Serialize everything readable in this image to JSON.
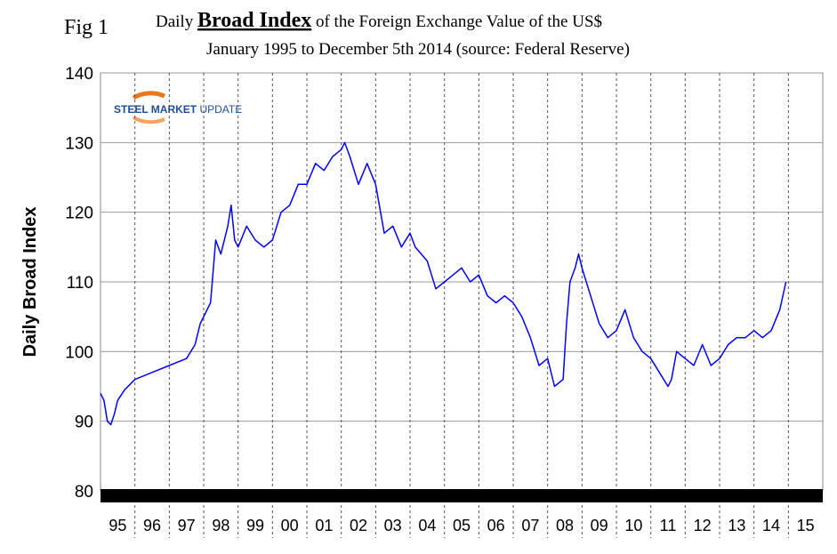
{
  "chart_data": {
    "type": "line",
    "fig_label": "Fig 1",
    "title": [
      "Daily",
      "Broad Index",
      "of the Foreign Exchange Value of the US$"
    ],
    "subtitle": "January 1995 to December 5th 2014 (source: Federal Reserve)",
    "logo": [
      "STEEL MARKET",
      "UPDATE"
    ],
    "y_label": "Daily Broad Index",
    "categories": [
      "95",
      "96",
      "97",
      "98",
      "99",
      "00",
      "01",
      "02",
      "03",
      "04",
      "05",
      "06",
      "07",
      "08",
      "09",
      "10",
      "11",
      "12",
      "13",
      "14",
      "15"
    ],
    "xlim": [
      1995,
      2016
    ],
    "ylim": [
      80,
      140
    ],
    "yticks": [
      80,
      90,
      100,
      110,
      120,
      130,
      140
    ],
    "grid": true,
    "series": [
      {
        "color": "#0000ff",
        "x": [
          1995.0,
          1995.1,
          1995.2,
          1995.3,
          1995.4,
          1995.5,
          1995.7,
          1996.0,
          1996.5,
          1997.0,
          1997.5,
          1997.75,
          1997.9,
          1998.2,
          1998.35,
          1998.5,
          1998.7,
          1998.8,
          1998.9,
          1999.0,
          1999.25,
          1999.5,
          1999.75,
          2000.0,
          2000.25,
          2000.5,
          2000.75,
          2001.0,
          2001.25,
          2001.5,
          2001.75,
          2002.0,
          2002.1,
          2002.25,
          2002.5,
          2002.75,
          2003.0,
          2003.25,
          2003.5,
          2003.75,
          2004.0,
          2004.15,
          2004.5,
          2004.75,
          2005.0,
          2005.25,
          2005.5,
          2005.75,
          2006.0,
          2006.25,
          2006.5,
          2006.75,
          2007.0,
          2007.25,
          2007.5,
          2007.75,
          2008.0,
          2008.2,
          2008.45,
          2008.55,
          2008.65,
          2008.8,
          2008.9,
          2009.0,
          2009.25,
          2009.5,
          2009.75,
          2010.0,
          2010.25,
          2010.5,
          2010.75,
          2011.0,
          2011.25,
          2011.5,
          2011.6,
          2011.75,
          2012.0,
          2012.25,
          2012.5,
          2012.75,
          2013.0,
          2013.25,
          2013.5,
          2013.75,
          2014.0,
          2014.25,
          2014.5,
          2014.75,
          2014.93
        ],
        "values": [
          94,
          93,
          90,
          89.5,
          91,
          93,
          94.5,
          96,
          97,
          98,
          99,
          101,
          104,
          107,
          116,
          114,
          118,
          121,
          116,
          115,
          118,
          116,
          115,
          116,
          120,
          121,
          124,
          124,
          127,
          126,
          128,
          129,
          130,
          128,
          124,
          127,
          124,
          117,
          118,
          115,
          117,
          115,
          113,
          109,
          110,
          111,
          112,
          110,
          111,
          108,
          107,
          108,
          107,
          105,
          102,
          98,
          99,
          95,
          96,
          104,
          110,
          112,
          114,
          112,
          108,
          104,
          102,
          103,
          106,
          102,
          100,
          99,
          97,
          95,
          96,
          100,
          99,
          98,
          101,
          98,
          99,
          101,
          102,
          102,
          103,
          102,
          103,
          106,
          110
        ]
      }
    ]
  }
}
